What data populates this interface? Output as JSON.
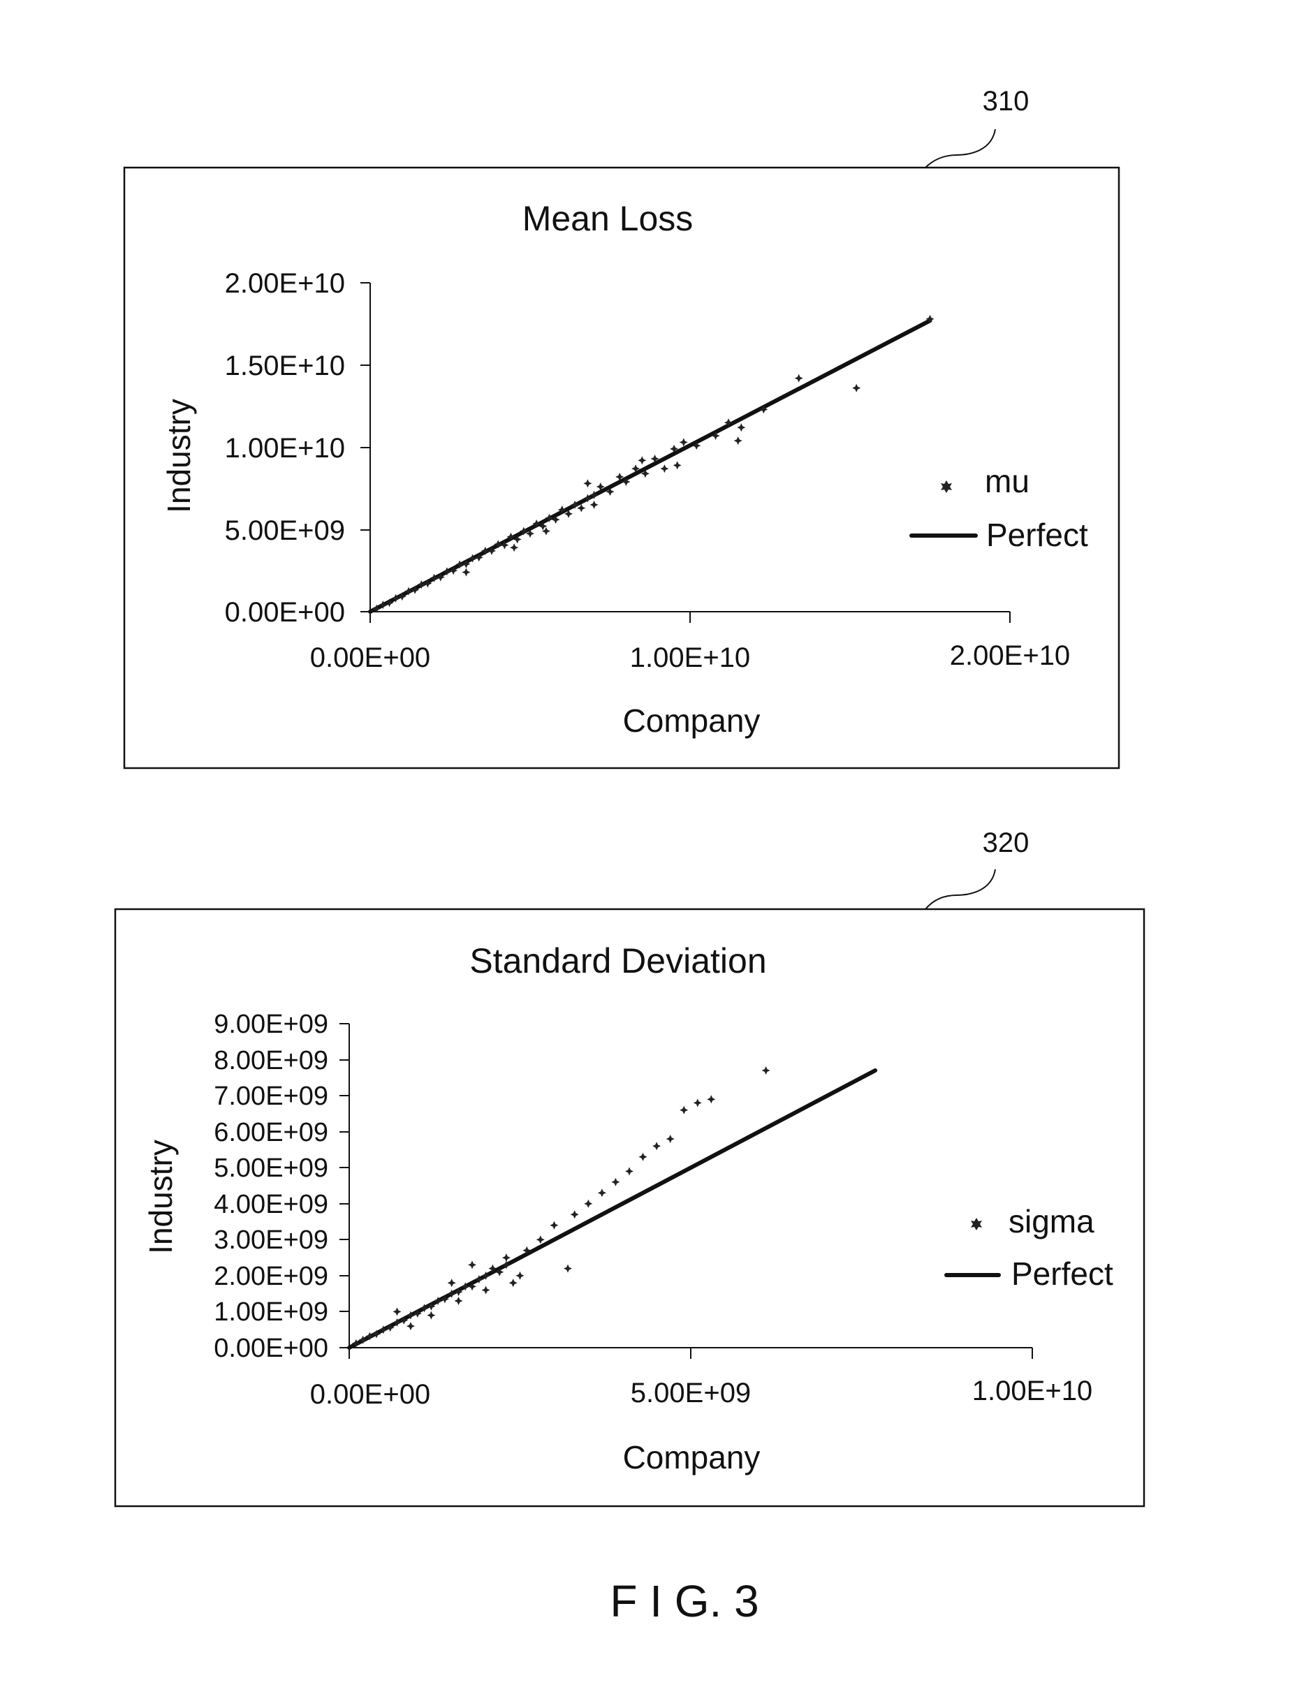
{
  "figure": {
    "caption": "F I G. 3"
  },
  "chart_data": [
    {
      "type": "scatter",
      "ref_number": "310",
      "title": "Mean Loss",
      "xlabel": "Company",
      "ylabel": "Industry",
      "xlim": [
        0,
        20000000000
      ],
      "ylim": [
        0,
        20000000000
      ],
      "xticks": [
        0,
        10000000000,
        20000000000
      ],
      "xtick_labels": [
        "0.00E+00",
        "1.00E+10",
        "2.00E+10"
      ],
      "yticks": [
        0,
        5000000000,
        10000000000,
        15000000000,
        20000000000
      ],
      "ytick_labels": [
        "0.00E+00",
        "5.00E+09",
        "1.00E+10",
        "1.50E+10",
        "2.00E+10"
      ],
      "grid": false,
      "legend_position": "right",
      "series": [
        {
          "name": "mu",
          "kind": "points",
          "points": [
            [
              200000000,
              180000000
            ],
            [
              400000000,
              420000000
            ],
            [
              600000000,
              540000000
            ],
            [
              800000000,
              820000000
            ],
            [
              1000000000,
              930000000
            ],
            [
              1200000000,
              1250000000
            ],
            [
              1400000000,
              1330000000
            ],
            [
              1600000000,
              1650000000
            ],
            [
              1800000000,
              1720000000
            ],
            [
              2000000000,
              2050000000
            ],
            [
              2200000000,
              2100000000
            ],
            [
              2400000000,
              2450000000
            ],
            [
              2600000000,
              2500000000
            ],
            [
              2800000000,
              2870000000
            ],
            [
              3000000000,
              2900000000
            ],
            [
              3200000000,
              3250000000
            ],
            [
              3400000000,
              3300000000
            ],
            [
              3600000000,
              3700000000
            ],
            [
              3800000000,
              3700000000
            ],
            [
              4000000000,
              4100000000
            ],
            [
              4200000000,
              4050000000
            ],
            [
              4400000000,
              4550000000
            ],
            [
              4600000000,
              4400000000
            ],
            [
              4800000000,
              4900000000
            ],
            [
              5000000000,
              4750000000
            ],
            [
              5200000000,
              5350000000
            ],
            [
              5400000000,
              5200000000
            ],
            [
              5600000000,
              5700000000
            ],
            [
              5800000000,
              5600000000
            ],
            [
              6000000000,
              6200000000
            ],
            [
              6200000000,
              5950000000
            ],
            [
              6400000000,
              6500000000
            ],
            [
              6600000000,
              6300000000
            ],
            [
              6800000000,
              6900000000
            ],
            [
              7000000000,
              7100000000
            ],
            [
              7200000000,
              7600000000
            ],
            [
              7500000000,
              7300000000
            ],
            [
              7800000000,
              8200000000
            ],
            [
              8000000000,
              7900000000
            ],
            [
              8300000000,
              8700000000
            ],
            [
              8600000000,
              8400000000
            ],
            [
              8900000000,
              9300000000
            ],
            [
              9200000000,
              8700000000
            ],
            [
              9500000000,
              9900000000
            ],
            [
              9800000000,
              10300000000
            ],
            [
              10200000000,
              10100000000
            ],
            [
              10800000000,
              10700000000
            ],
            [
              11200000000,
              11500000000
            ],
            [
              11600000000,
              11200000000
            ],
            [
              12300000000,
              12300000000
            ],
            [
              13400000000,
              14200000000
            ],
            [
              15200000000,
              13600000000
            ],
            [
              17500000000,
              17800000000
            ],
            [
              3000000000,
              2400000000
            ],
            [
              5500000000,
              4900000000
            ],
            [
              6800000000,
              7800000000
            ],
            [
              9600000000,
              8900000000
            ],
            [
              4500000000,
              3900000000
            ],
            [
              7000000000,
              6500000000
            ],
            [
              8500000000,
              9200000000
            ],
            [
              11500000000,
              10400000000
            ]
          ]
        },
        {
          "name": "Perfect",
          "kind": "line",
          "points": [
            [
              0,
              0
            ],
            [
              17500000000,
              17700000000
            ]
          ]
        }
      ]
    },
    {
      "type": "scatter",
      "ref_number": "320",
      "title": "Standard Deviation",
      "xlabel": "Company",
      "ylabel": "Industry",
      "xlim": [
        0,
        10000000000
      ],
      "ylim": [
        0,
        9000000000
      ],
      "xticks": [
        0,
        5000000000,
        10000000000
      ],
      "xtick_labels": [
        "0.00E+00",
        "5.00E+09",
        "1.00E+10"
      ],
      "yticks": [
        0,
        1000000000,
        2000000000,
        3000000000,
        4000000000,
        5000000000,
        6000000000,
        7000000000,
        8000000000,
        9000000000
      ],
      "ytick_labels": [
        "0.00E+00",
        "1.00E+09",
        "2.00E+09",
        "3.00E+09",
        "4.00E+09",
        "5.00E+09",
        "6.00E+09",
        "7.00E+09",
        "8.00E+09",
        "9.00E+09"
      ],
      "grid": false,
      "legend_position": "right",
      "series": [
        {
          "name": "sigma",
          "kind": "points",
          "points": [
            [
              100000000,
              120000000
            ],
            [
              200000000,
              220000000
            ],
            [
              300000000,
              320000000
            ],
            [
              400000000,
              380000000
            ],
            [
              500000000,
              500000000
            ],
            [
              600000000,
              560000000
            ],
            [
              700000000,
              700000000
            ],
            [
              800000000,
              760000000
            ],
            [
              900000000,
              900000000
            ],
            [
              1000000000,
              950000000
            ],
            [
              1100000000,
              1100000000
            ],
            [
              1200000000,
              1150000000
            ],
            [
              1300000000,
              1300000000
            ],
            [
              1400000000,
              1350000000
            ],
            [
              1500000000,
              1500000000
            ],
            [
              1600000000,
              1550000000
            ],
            [
              1700000000,
              1700000000
            ],
            [
              1800000000,
              1700000000
            ],
            [
              1900000000,
              1900000000
            ],
            [
              2000000000,
              2000000000
            ],
            [
              2100000000,
              2200000000
            ],
            [
              2200000000,
              2100000000
            ],
            [
              2300000000,
              2300000000
            ],
            [
              2400000000,
              1800000000
            ],
            [
              2500000000,
              2000000000
            ],
            [
              2600000000,
              2700000000
            ],
            [
              2800000000,
              3000000000
            ],
            [
              3000000000,
              3400000000
            ],
            [
              3200000000,
              2200000000
            ],
            [
              3300000000,
              3700000000
            ],
            [
              3500000000,
              4000000000
            ],
            [
              3700000000,
              4300000000
            ],
            [
              3900000000,
              4600000000
            ],
            [
              4100000000,
              4900000000
            ],
            [
              4300000000,
              5300000000
            ],
            [
              4500000000,
              5600000000
            ],
            [
              4700000000,
              5800000000
            ],
            [
              4900000000,
              6600000000
            ],
            [
              5100000000,
              6800000000
            ],
            [
              5300000000,
              6900000000
            ],
            [
              6100000000,
              7700000000
            ],
            [
              1200000000,
              900000000
            ],
            [
              1500000000,
              1800000000
            ],
            [
              1800000000,
              2300000000
            ],
            [
              2000000000,
              1600000000
            ],
            [
              700000000,
              1000000000
            ],
            [
              900000000,
              600000000
            ],
            [
              2300000000,
              2500000000
            ],
            [
              1600000000,
              1300000000
            ]
          ]
        },
        {
          "name": "Perfect",
          "kind": "line",
          "points": [
            [
              0,
              0
            ],
            [
              7700000000,
              7700000000
            ]
          ]
        }
      ]
    }
  ]
}
